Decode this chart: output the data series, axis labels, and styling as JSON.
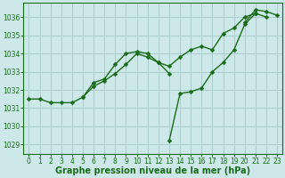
{
  "background_color": "#cce8e8",
  "grid_color": "#aacccc",
  "line_color": "#1a6b1a",
  "marker_color": "#1a6b1a",
  "xlabel": "Graphe pression niveau de la mer (hPa)",
  "xlabel_fontsize": 7,
  "xlim": [
    -0.5,
    23.5
  ],
  "ylim": [
    1028.5,
    1036.8
  ],
  "yticks": [
    1029,
    1030,
    1031,
    1032,
    1033,
    1034,
    1035,
    1036
  ],
  "xticks": [
    0,
    1,
    2,
    3,
    4,
    5,
    6,
    7,
    8,
    9,
    10,
    11,
    12,
    13,
    14,
    15,
    16,
    17,
    18,
    19,
    20,
    21,
    22,
    23
  ],
  "series": [
    [
      0,
      1031.5
    ],
    [
      1,
      1031.5
    ],
    [
      2,
      1031.3
    ],
    [
      3,
      1031.3
    ],
    [
      4,
      1031.3
    ],
    [
      5,
      1031.6
    ],
    [
      6,
      1032.4
    ],
    [
      7,
      1032.6
    ],
    [
      8,
      1033.4
    ],
    [
      9,
      1034.0
    ],
    [
      10,
      1034.1
    ],
    [
      11,
      1034.0
    ],
    [
      12,
      1033.5
    ],
    [
      13,
      1032.9
    ]
  ],
  "series2": [
    [
      5,
      1031.6
    ],
    [
      6,
      1032.2
    ],
    [
      7,
      1032.5
    ],
    [
      8,
      1032.9
    ],
    [
      9,
      1033.4
    ],
    [
      10,
      1034.0
    ],
    [
      11,
      1033.8
    ],
    [
      12,
      1033.5
    ],
    [
      13,
      1033.3
    ],
    [
      14,
      1033.8
    ],
    [
      15,
      1034.2
    ],
    [
      16,
      1034.4
    ],
    [
      17,
      1034.2
    ],
    [
      18,
      1035.1
    ],
    [
      19,
      1035.4
    ],
    [
      20,
      1036.0
    ],
    [
      21,
      1036.2
    ]
  ],
  "series3": [
    [
      13,
      1029.2
    ],
    [
      14,
      1031.8
    ],
    [
      15,
      1031.9
    ],
    [
      16,
      1032.1
    ],
    [
      17,
      1033.0
    ],
    [
      18,
      1033.5
    ],
    [
      19,
      1034.2
    ],
    [
      20,
      1035.6
    ],
    [
      21,
      1036.2
    ],
    [
      22,
      1036.0
    ]
  ],
  "series4": [
    [
      20,
      1035.7
    ],
    [
      21,
      1036.4
    ],
    [
      22,
      1036.3
    ],
    [
      23,
      1036.1
    ]
  ]
}
